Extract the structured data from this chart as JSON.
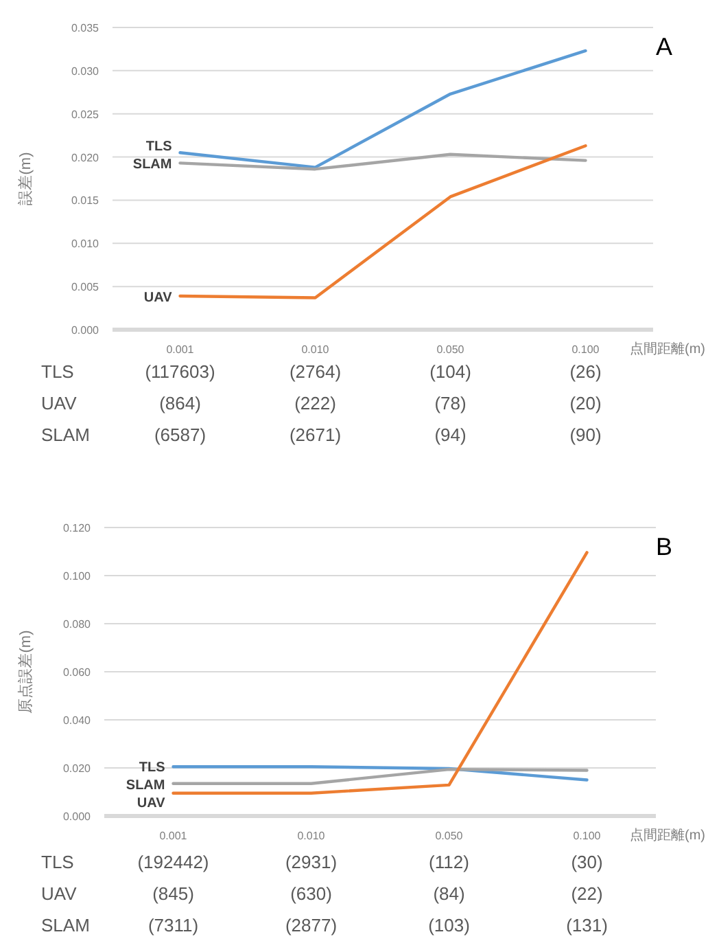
{
  "chart_data": [
    {
      "type": "line",
      "title": "A",
      "xlabel": "点間距離(m)",
      "ylabel": "誤差(m)",
      "categories": [
        "0.001",
        "0.010",
        "0.050",
        "0.100"
      ],
      "ylim": [
        0,
        0.035
      ],
      "yticks": [
        {
          "value": 0,
          "label": "0.000"
        },
        {
          "value": 0.005,
          "label": "0.005"
        },
        {
          "value": 0.01,
          "label": "0.010"
        },
        {
          "value": 0.015,
          "label": "0.015"
        },
        {
          "value": 0.02,
          "label": "0.020"
        },
        {
          "value": 0.025,
          "label": "0.025"
        },
        {
          "value": 0.03,
          "label": "0.030"
        },
        {
          "value": 0.035,
          "label": "0.035"
        }
      ],
      "grid": "y",
      "legend": false,
      "marker": "none",
      "series": [
        {
          "name": "TLS",
          "color": "#5b9bd5",
          "values": [
            0.0205,
            0.0188,
            0.0273,
            0.0323
          ]
        },
        {
          "name": "SLAM",
          "color": "#a5a5a5",
          "values": [
            0.0193,
            0.0186,
            0.0203,
            0.0196
          ]
        },
        {
          "name": "UAV",
          "color": "#ed7d31",
          "values": [
            0.0039,
            0.0037,
            0.0154,
            0.0213
          ]
        }
      ],
      "annotations": [
        "TLS",
        "(117603)",
        "(2764)",
        "(104)",
        "(26)",
        "UAV",
        "(864)",
        "(222)",
        "(78)",
        "(20)",
        "SLAM",
        "(6587)",
        "(2671)",
        "(94)",
        "(90)"
      ]
    },
    {
      "type": "line",
      "title": "B",
      "xlabel": "点間距離(m)",
      "ylabel": "原点誤差(m)",
      "categories": [
        "0.001",
        "0.010",
        "0.050",
        "0.100"
      ],
      "ylim": [
        0,
        0.12
      ],
      "yticks": [
        {
          "value": 0,
          "label": "0.000"
        },
        {
          "value": 0.02,
          "label": "0.020"
        },
        {
          "value": 0.04,
          "label": "0.040"
        },
        {
          "value": 0.06,
          "label": "0.060"
        },
        {
          "value": 0.08,
          "label": "0.080"
        },
        {
          "value": 0.1,
          "label": "0.100"
        },
        {
          "value": 0.12,
          "label": "0.120"
        }
      ],
      "grid": "y",
      "legend": false,
      "marker": "none",
      "series": [
        {
          "name": "TLS",
          "color": "#5b9bd5",
          "values": [
            0.0205,
            0.0205,
            0.0197,
            0.015
          ]
        },
        {
          "name": "SLAM",
          "color": "#a5a5a5",
          "values": [
            0.0135,
            0.0135,
            0.0194,
            0.019
          ]
        },
        {
          "name": "UAV",
          "color": "#ed7d31",
          "values": [
            0.0095,
            0.0095,
            0.0129,
            0.1096
          ]
        }
      ],
      "annotations": [
        "TLS",
        "(192442)",
        "(2931)",
        "(112)",
        "(30)",
        "UAV",
        "(845)",
        "(630)",
        "(84)",
        "(22)",
        "SLAM",
        "(7311)",
        "(2877)",
        "(103)",
        "(131)"
      ]
    }
  ]
}
